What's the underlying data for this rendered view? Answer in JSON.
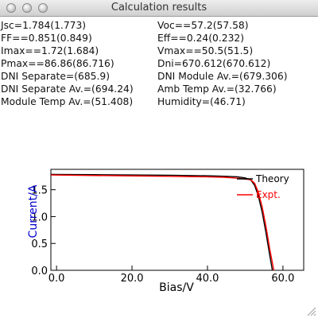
{
  "window": {
    "title": "Calculation results"
  },
  "results": {
    "left": [
      "Jsc=1.784(1.773)",
      "FF==0.851(0.849)",
      "Imax==1.72(1.684)",
      "Pmax==86.86(86.716)",
      "DNI Separate=(685.9)",
      "DNI Separate Av.=(694.24)",
      "Module Temp Av.=(51.408)"
    ],
    "right": [
      "Voc==57.2(57.58)",
      "Eff==0.24(0.232)",
      "Vmax==50.5(51.5)",
      "Dni=670.612(670.612)",
      "DNI Module Av.=(679.306)",
      "Amb Temp Av.=(32.766)",
      "Humidity=(46.71)"
    ]
  },
  "chart_data": {
    "type": "line",
    "xlabel": "Bias/V",
    "ylabel": "Current/A",
    "xlim": [
      -1.5,
      65.5
    ],
    "ylim": [
      0.0,
      1.88
    ],
    "xticks": [
      0.0,
      20.0,
      40.0,
      60.0
    ],
    "yticks": [
      0.0,
      0.5,
      1.0,
      1.5
    ],
    "xtick_labels": [
      "0.0",
      "20.0",
      "40.0",
      "60.0"
    ],
    "ytick_labels": [
      "0.0",
      "0.5",
      "1.0",
      "1.5"
    ],
    "grid": false,
    "legend_position": "top-right",
    "series": [
      {
        "name": "Theory",
        "color": "#000000",
        "x": [
          -1.5,
          0,
          10,
          20,
          30,
          40,
          45,
          48,
          50,
          51.5,
          52.5,
          53.5,
          54.5,
          55.5,
          56.5,
          57.2
        ],
        "y": [
          1.786,
          1.785,
          1.78,
          1.775,
          1.77,
          1.76,
          1.75,
          1.74,
          1.72,
          1.68,
          1.58,
          1.38,
          1.08,
          0.7,
          0.28,
          0.0
        ]
      },
      {
        "name": "Expt.",
        "color": "#ff0000",
        "x": [
          -1.5,
          0,
          10,
          20,
          30,
          40,
          45,
          48,
          50,
          51.5,
          52.5,
          53.5,
          54.5,
          55.5,
          56.5,
          57.58
        ],
        "y": [
          1.775,
          1.773,
          1.765,
          1.758,
          1.75,
          1.74,
          1.73,
          1.715,
          1.7,
          1.684,
          1.62,
          1.45,
          1.18,
          0.82,
          0.4,
          0.0
        ]
      }
    ],
    "colors": {
      "axis_label": "#0000cc",
      "axes": "#000000"
    }
  }
}
